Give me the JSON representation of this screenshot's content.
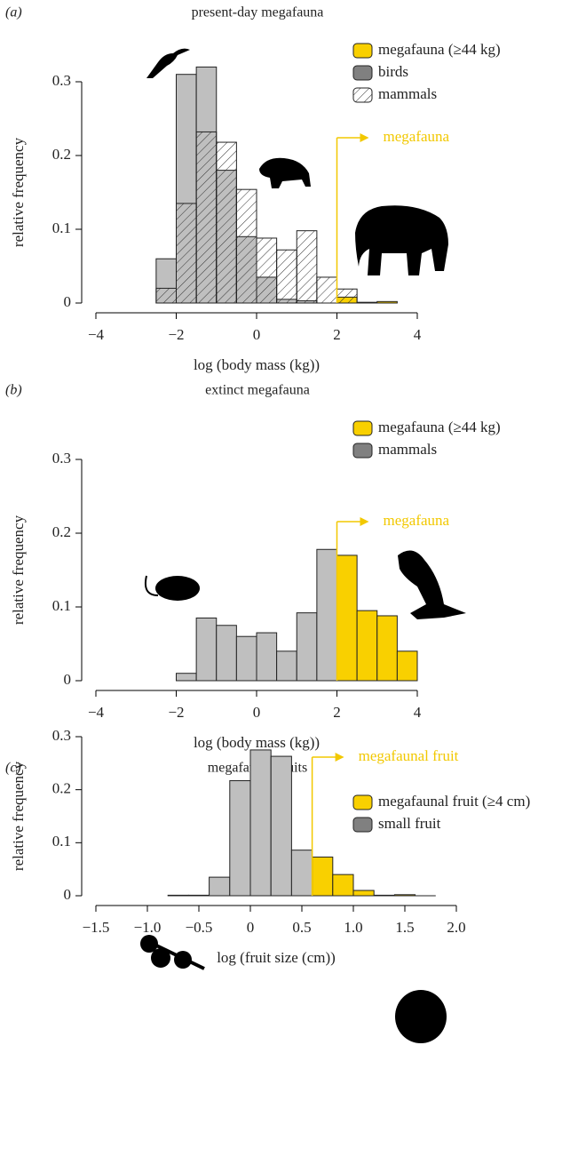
{
  "chart_data": [
    {
      "type": "histogram",
      "panel_label": "(a)",
      "title": "present-day megafauna",
      "xlabel": "log (body mass (kg))",
      "ylabel": "relative frequency",
      "bins": [
        -2.5,
        -2,
        -1.5,
        -1,
        -0.5,
        0,
        0.5,
        1,
        1.5,
        2,
        2.5,
        3,
        3.5
      ],
      "series": [
        {
          "name": "megafauna (≥44 kg)",
          "color": "#f9d000",
          "values": [
            0,
            0,
            0,
            0,
            0,
            0,
            0,
            0,
            0,
            0.008,
            0.001,
            0.002
          ]
        },
        {
          "name": "birds",
          "color": "#bfbfbf",
          "values": [
            0.06,
            0.31,
            0.32,
            0.18,
            0.09,
            0.035,
            0.005,
            0.003,
            0,
            0,
            0,
            0
          ]
        },
        {
          "name": "mammals",
          "color": "#000000",
          "pattern": "hatch",
          "values": [
            0.02,
            0.135,
            0.232,
            0.218,
            0.154,
            0.088,
            0.072,
            0.098,
            0.035,
            0.019,
            0,
            0
          ]
        }
      ],
      "xlim": [
        -4,
        4
      ],
      "ylim": [
        0,
        0.3
      ],
      "xticks": [
        {
          "value": -4,
          "label": "−4"
        },
        {
          "value": -2,
          "label": "−2"
        },
        0,
        2,
        4
      ],
      "yticks": [
        0,
        0.1,
        0.2,
        0.3
      ],
      "threshold": 2,
      "annotation": "megafauna"
    },
    {
      "type": "histogram",
      "panel_label": "(b)",
      "title": "extinct megafauna",
      "xlabel": "log (body mass (kg))",
      "ylabel": "relative frequency",
      "bins": [
        -2,
        -1.5,
        -1,
        -0.5,
        0,
        0.5,
        1,
        1.5,
        2,
        2.5,
        3,
        3.5,
        4
      ],
      "series": [
        {
          "name": "megafauna (≥44 kg)",
          "color": "#f9d000",
          "values": [
            0,
            0,
            0,
            0,
            0,
            0,
            0,
            0,
            0.17,
            0.095,
            0.088,
            0.04
          ]
        },
        {
          "name": "mammals",
          "color": "#bfbfbf",
          "values": [
            0.01,
            0.085,
            0.075,
            0.06,
            0.065,
            0.04,
            0.092,
            0.178,
            0,
            0,
            0,
            0
          ]
        }
      ],
      "xlim": [
        -4,
        4
      ],
      "ylim": [
        0,
        0.3
      ],
      "xticks": [
        {
          "value": -4,
          "label": "−4"
        },
        {
          "value": -2,
          "label": "−2"
        },
        0,
        2,
        4
      ],
      "yticks": [
        0,
        0.1,
        0.2,
        0.3
      ],
      "threshold": 2,
      "annotation": "megafauna"
    },
    {
      "type": "histogram",
      "panel_label": "(c)",
      "title": "megafaunal fruits",
      "xlabel": "log (fruit size (cm))",
      "ylabel": "relative frequency",
      "bins": [
        -0.8,
        -0.6,
        -0.4,
        -0.2,
        0,
        0.2,
        0.4,
        0.6,
        0.8,
        1,
        1.2,
        1.4,
        1.6,
        1.8
      ],
      "series": [
        {
          "name": "megafaunal fruit (≥4 cm)",
          "color": "#f9d000",
          "values": [
            0,
            0,
            0,
            0,
            0,
            0,
            0,
            0.073,
            0.04,
            0.01,
            0.001,
            0.002,
            0
          ]
        },
        {
          "name": "small fruit",
          "color": "#bfbfbf",
          "values": [
            0.001,
            0.001,
            0.035,
            0.217,
            0.275,
            0.263,
            0.086,
            0,
            0,
            0,
            0,
            0,
            0
          ]
        }
      ],
      "xlim": [
        -1.5,
        2
      ],
      "ylim": [
        0,
        0.3
      ],
      "xticks": [
        {
          "value": -1.5,
          "label": "−1.5"
        },
        {
          "value": -1,
          "label": "−1.0"
        },
        {
          "value": -0.5,
          "label": "−0.5"
        },
        0,
        0.5,
        {
          "value": 1,
          "label": "1.0"
        },
        1.5,
        {
          "value": 2,
          "label": "2.0"
        }
      ],
      "yticks": [
        0,
        0.1,
        0.2,
        0.3
      ],
      "threshold": 0.6,
      "annotation": "megafaunal fruit"
    }
  ]
}
